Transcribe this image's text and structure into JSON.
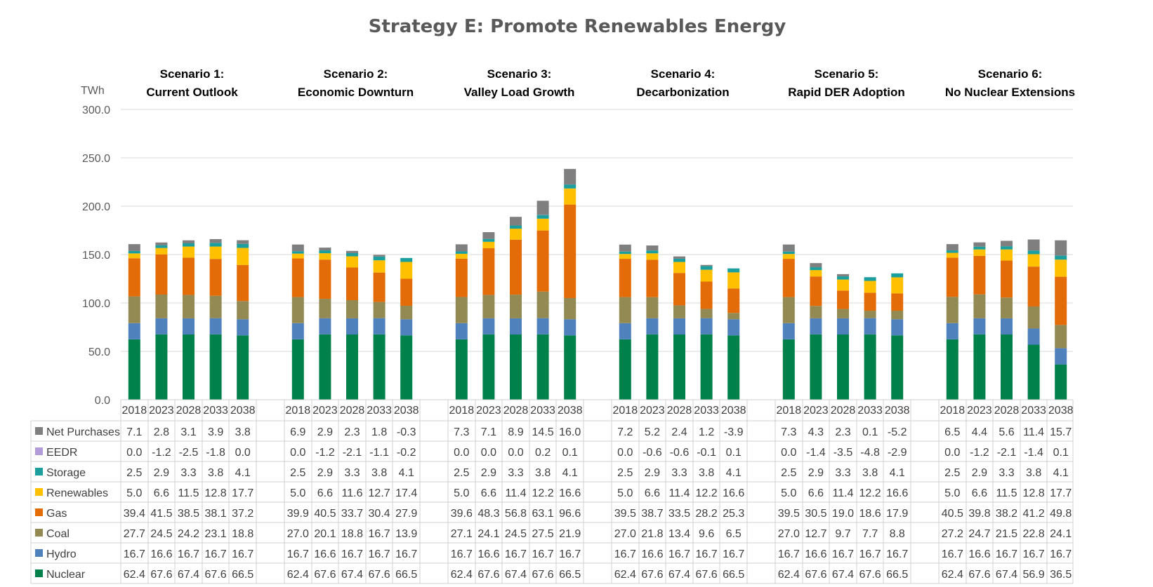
{
  "chart_data": {
    "type": "bar",
    "stacked": true,
    "title": "Strategy E: Promote Renewables Energy",
    "ylabel": "TWh",
    "ylim": [
      0,
      300
    ],
    "yticks": [
      "0.0",
      "50.0",
      "100.0",
      "150.0",
      "200.0",
      "250.0",
      "300.0"
    ],
    "grid": true,
    "categories": [
      "2018",
      "2023",
      "2028",
      "2033",
      "2038"
    ],
    "series_names": [
      "Nuclear",
      "Hydro",
      "Coal",
      "Gas",
      "Renewables",
      "Storage",
      "EEDR",
      "Net Purchases"
    ],
    "legend_order": [
      "Net Purchases",
      "EEDR",
      "Storage",
      "Renewables",
      "Gas",
      "Coal",
      "Hydro",
      "Nuclear"
    ],
    "colors": {
      "Nuclear": "#00804a",
      "Hydro": "#4f81bd",
      "Coal": "#938953",
      "Gas": "#e36c09",
      "Renewables": "#ffc000",
      "Storage": "#1b9e9e",
      "EEDR": "#b19cd9",
      "Net Purchases": "#7f7f7f"
    },
    "scenarios": [
      {
        "line1": "Scenario 1:",
        "line2": "Current Outlook",
        "series": {
          "Net Purchases": [
            "7.1",
            "2.8",
            "3.1",
            "3.9",
            "3.8"
          ],
          "EEDR": [
            "0.0",
            "-1.2",
            "-2.5",
            "-1.8",
            "0.0"
          ],
          "Storage": [
            "2.5",
            "2.9",
            "3.3",
            "3.8",
            "4.1"
          ],
          "Renewables": [
            "5.0",
            "6.6",
            "11.5",
            "12.8",
            "17.7"
          ],
          "Gas": [
            "39.4",
            "41.5",
            "38.5",
            "38.1",
            "37.2"
          ],
          "Coal": [
            "27.7",
            "24.5",
            "24.2",
            "23.1",
            "18.8"
          ],
          "Hydro": [
            "16.7",
            "16.6",
            "16.7",
            "16.7",
            "16.7"
          ],
          "Nuclear": [
            "62.4",
            "67.6",
            "67.4",
            "67.6",
            "66.5"
          ]
        }
      },
      {
        "line1": "Scenario 2:",
        "line2": "Economic Downturn",
        "series": {
          "Net Purchases": [
            "6.9",
            "2.9",
            "2.3",
            "1.8",
            "-0.3"
          ],
          "EEDR": [
            "0.0",
            "-1.2",
            "-2.1",
            "-1.1",
            "-0.2"
          ],
          "Storage": [
            "2.5",
            "2.9",
            "3.3",
            "3.8",
            "4.1"
          ],
          "Renewables": [
            "5.0",
            "6.6",
            "11.6",
            "12.7",
            "17.4"
          ],
          "Gas": [
            "39.9",
            "40.5",
            "33.7",
            "30.4",
            "27.9"
          ],
          "Coal": [
            "27.0",
            "20.1",
            "18.8",
            "16.7",
            "13.9"
          ],
          "Hydro": [
            "16.7",
            "16.6",
            "16.7",
            "16.7",
            "16.7"
          ],
          "Nuclear": [
            "62.4",
            "67.6",
            "67.4",
            "67.6",
            "66.5"
          ]
        }
      },
      {
        "line1": "Scenario 3:",
        "line2": "Valley Load Growth",
        "series": {
          "Net Purchases": [
            "7.3",
            "7.1",
            "8.9",
            "14.5",
            "16.0"
          ],
          "EEDR": [
            "0.0",
            "0.0",
            "0.0",
            "0.2",
            "0.1"
          ],
          "Storage": [
            "2.5",
            "2.9",
            "3.3",
            "3.8",
            "4.1"
          ],
          "Renewables": [
            "5.0",
            "6.6",
            "11.4",
            "12.2",
            "16.6"
          ],
          "Gas": [
            "39.6",
            "48.3",
            "56.8",
            "63.1",
            "96.6"
          ],
          "Coal": [
            "27.1",
            "24.1",
            "24.5",
            "27.5",
            "21.9"
          ],
          "Hydro": [
            "16.7",
            "16.6",
            "16.7",
            "16.7",
            "16.7"
          ],
          "Nuclear": [
            "62.4",
            "67.6",
            "67.4",
            "67.6",
            "66.5"
          ]
        }
      },
      {
        "line1": "Scenario 4:",
        "line2": "Decarbonization",
        "series": {
          "Net Purchases": [
            "7.2",
            "5.2",
            "2.4",
            "1.2",
            "-3.9"
          ],
          "EEDR": [
            "0.0",
            "-0.6",
            "-0.6",
            "-0.1",
            "0.1"
          ],
          "Storage": [
            "2.5",
            "2.9",
            "3.3",
            "3.8",
            "4.1"
          ],
          "Renewables": [
            "5.0",
            "6.6",
            "11.4",
            "12.2",
            "16.6"
          ],
          "Gas": [
            "39.5",
            "38.7",
            "33.5",
            "28.2",
            "25.3"
          ],
          "Coal": [
            "27.0",
            "21.8",
            "13.4",
            "9.6",
            "6.5"
          ],
          "Hydro": [
            "16.7",
            "16.6",
            "16.7",
            "16.7",
            "16.7"
          ],
          "Nuclear": [
            "62.4",
            "67.6",
            "67.4",
            "67.6",
            "66.5"
          ]
        }
      },
      {
        "line1": "Scenario 5:",
        "line2": "Rapid DER Adoption",
        "series": {
          "Net Purchases": [
            "7.3",
            "4.3",
            "2.3",
            "0.1",
            "-5.2"
          ],
          "EEDR": [
            "0.0",
            "-1.4",
            "-3.5",
            "-4.8",
            "-2.9"
          ],
          "Storage": [
            "2.5",
            "2.9",
            "3.3",
            "3.8",
            "4.1"
          ],
          "Renewables": [
            "5.0",
            "6.6",
            "11.4",
            "12.2",
            "16.6"
          ],
          "Gas": [
            "39.5",
            "30.5",
            "19.0",
            "18.6",
            "17.9"
          ],
          "Coal": [
            "27.0",
            "12.7",
            "9.7",
            "7.7",
            "8.8"
          ],
          "Hydro": [
            "16.7",
            "16.6",
            "16.7",
            "16.7",
            "16.7"
          ],
          "Nuclear": [
            "62.4",
            "67.6",
            "67.4",
            "67.6",
            "66.5"
          ]
        }
      },
      {
        "line1": "Scenario 6:",
        "line2": "No Nuclear Extensions",
        "series": {
          "Net Purchases": [
            "6.5",
            "4.4",
            "5.6",
            "11.4",
            "15.7"
          ],
          "EEDR": [
            "0.0",
            "-1.2",
            "-2.1",
            "-1.4",
            "0.1"
          ],
          "Storage": [
            "2.5",
            "2.9",
            "3.3",
            "3.8",
            "4.1"
          ],
          "Renewables": [
            "5.0",
            "6.6",
            "11.5",
            "12.8",
            "17.7"
          ],
          "Gas": [
            "40.5",
            "39.8",
            "38.2",
            "41.2",
            "49.8"
          ],
          "Coal": [
            "27.2",
            "24.7",
            "21.5",
            "22.8",
            "24.1"
          ],
          "Hydro": [
            "16.7",
            "16.6",
            "16.7",
            "16.7",
            "16.7"
          ],
          "Nuclear": [
            "62.4",
            "67.6",
            "67.4",
            "56.9",
            "36.5"
          ]
        }
      }
    ]
  }
}
